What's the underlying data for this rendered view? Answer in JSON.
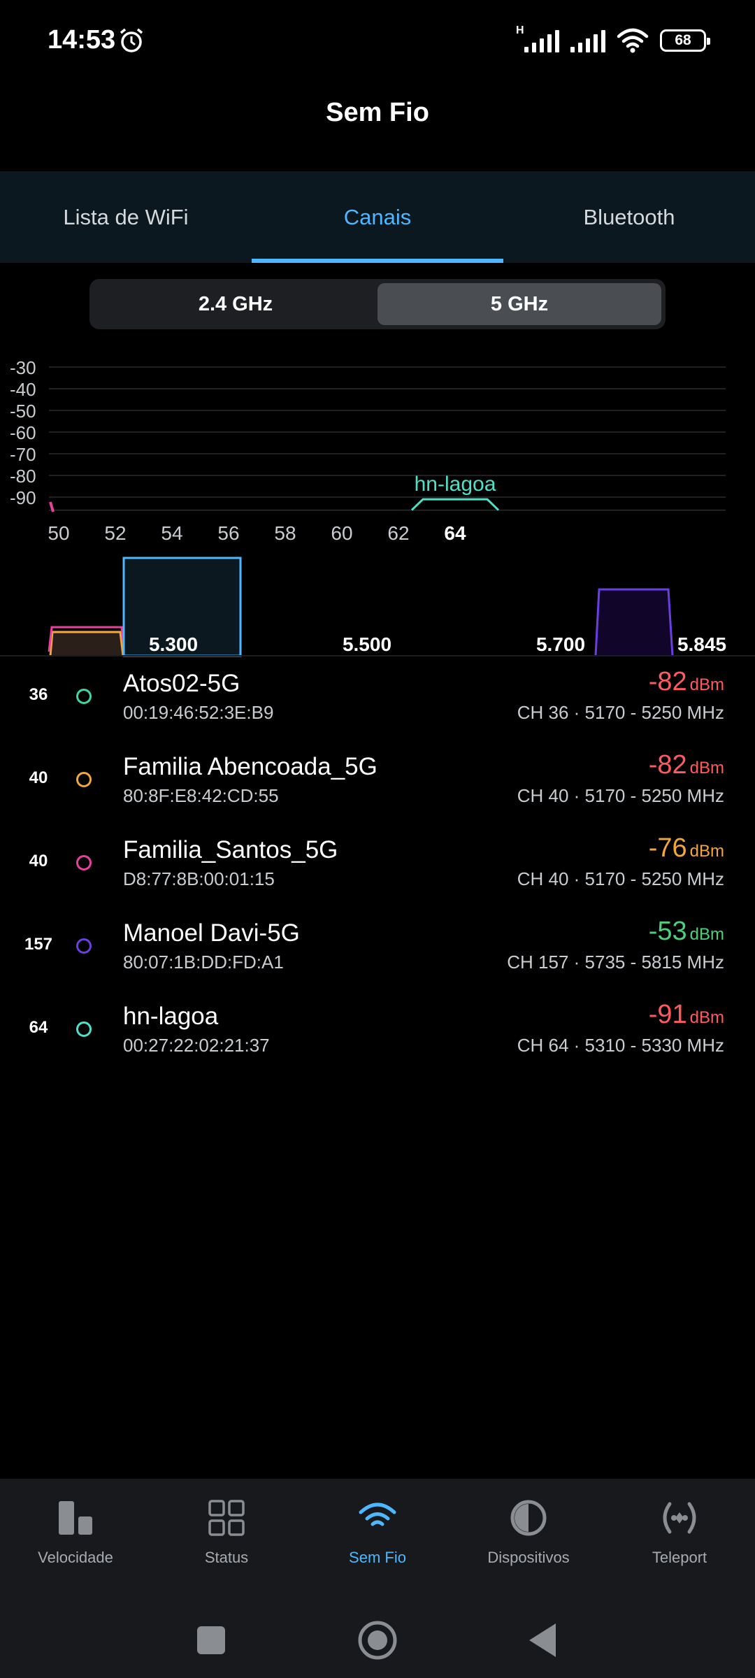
{
  "status_bar": {
    "time": "14:53",
    "network_type": "H",
    "battery": "68"
  },
  "header": {
    "title": "Sem Fio"
  },
  "tabs": [
    {
      "label": "Lista de WiFi",
      "active": false
    },
    {
      "label": "Canais",
      "active": true
    },
    {
      "label": "Bluetooth",
      "active": false
    }
  ],
  "band": {
    "options": [
      "2.4 GHz",
      "5 GHz"
    ],
    "selected": "5 GHz"
  },
  "chart_data": {
    "type": "area",
    "y_ticks": [
      "-30",
      "-40",
      "-50",
      "-60",
      "-70",
      "-80",
      "-90"
    ],
    "ylim": [
      -95,
      -30
    ],
    "x_ticks": [
      "50",
      "52",
      "54",
      "56",
      "58",
      "60",
      "62",
      "64"
    ],
    "highlighted_tick": "64",
    "series": [
      {
        "name": "hn-lagoa",
        "channel": 64,
        "rssi": -91,
        "color": "#4ee0c8"
      }
    ]
  },
  "overview": {
    "labels": [
      "5.300",
      "5.500",
      "5.700",
      "5.845"
    ]
  },
  "networks": [
    {
      "channel": "36",
      "ssid": "Atos02-5G",
      "mac": "00:19:46:52:3E:B9",
      "rssi": "-82",
      "unit": "dBm",
      "info": "CH 36 · 5170 - 5250 MHz",
      "dot_color": "#3fd6a0",
      "rssi_color": "#ff5a5f"
    },
    {
      "channel": "40",
      "ssid": "Familia Abencoada_5G",
      "mac": "80:8F:E8:42:CD:55",
      "rssi": "-82",
      "unit": "dBm",
      "info": "CH 40 · 5170 - 5250 MHz",
      "dot_color": "#f2a640",
      "rssi_color": "#ff5a5f"
    },
    {
      "channel": "40",
      "ssid": "Familia_Santos_5G",
      "mac": "D8:77:8B:00:01:15",
      "rssi": "-76",
      "unit": "dBm",
      "info": "CH 40 · 5170 - 5250 MHz",
      "dot_color": "#e8409c",
      "rssi_color": "#f2a640"
    },
    {
      "channel": "157",
      "ssid": "Manoel Davi-5G",
      "mac": "80:07:1B:DD:FD:A1",
      "rssi": "-53",
      "unit": "dBm",
      "info": "CH 157 · 5735 - 5815 MHz",
      "dot_color": "#6a3fe0",
      "rssi_color": "#4cd07d"
    },
    {
      "channel": "64",
      "ssid": "hn-lagoa",
      "mac": "00:27:22:02:21:37",
      "rssi": "-91",
      "unit": "dBm",
      "info": "CH 64 · 5310 - 5330 MHz",
      "dot_color": "#4ee0c8",
      "rssi_color": "#ff5a5f"
    }
  ],
  "bottom_nav": [
    {
      "label": "Velocidade",
      "icon": "bar-chart-icon",
      "active": false
    },
    {
      "label": "Status",
      "icon": "grid-icon",
      "active": false
    },
    {
      "label": "Sem Fio",
      "icon": "wifi-icon",
      "active": true
    },
    {
      "label": "Dispositivos",
      "icon": "devices-icon",
      "active": false
    },
    {
      "label": "Teleport",
      "icon": "teleport-icon",
      "active": false
    }
  ],
  "colors": {
    "accent": "#4db8ff",
    "background": "#000000",
    "tabbar": "#0b1820"
  }
}
